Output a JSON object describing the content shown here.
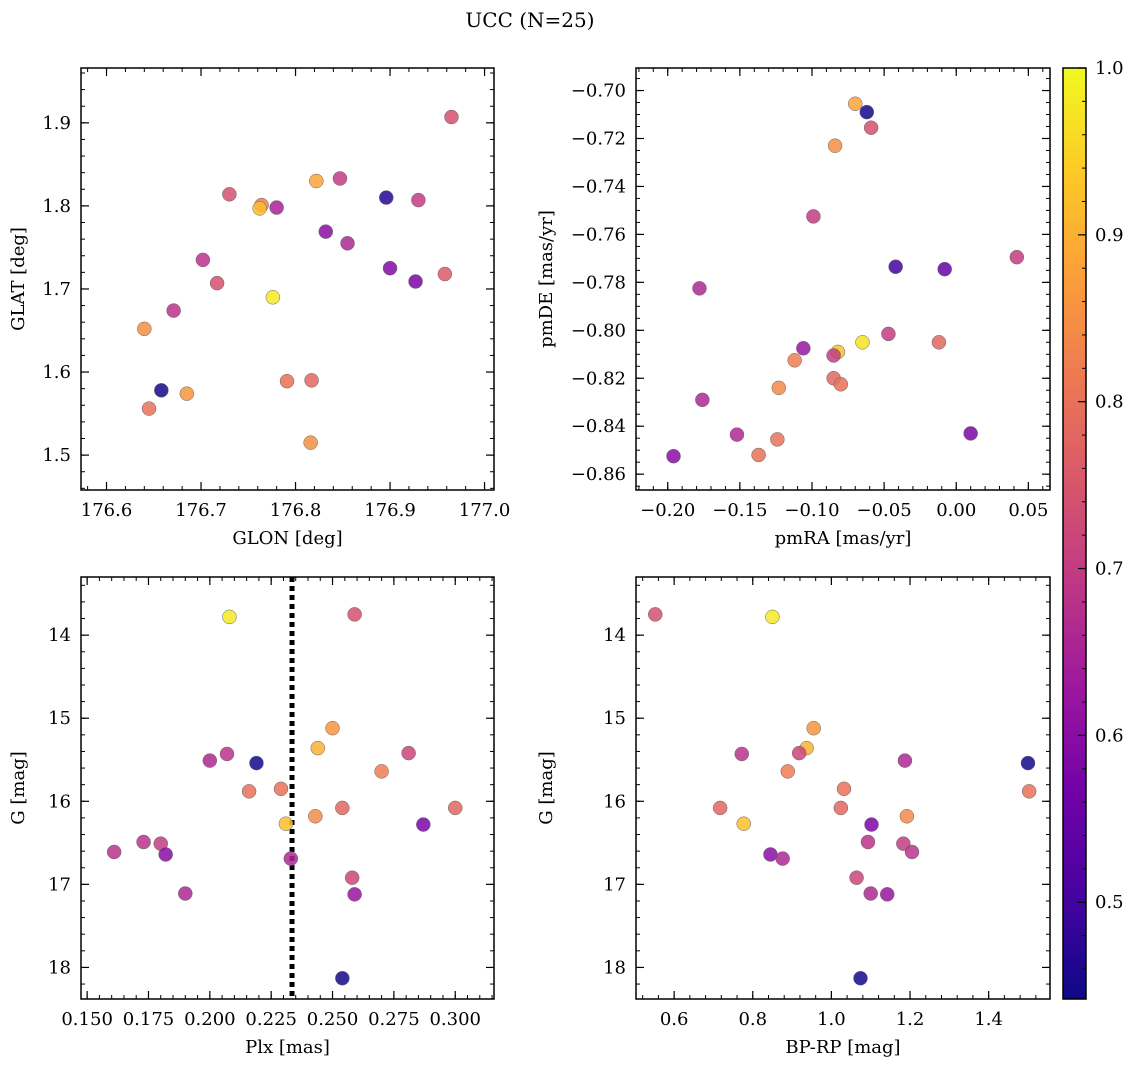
{
  "title": "UCC (N=25)",
  "colormap": {
    "name": "plasma",
    "range": [
      0.442,
      1.0
    ],
    "ticks": [
      0.5,
      0.6,
      0.7,
      0.8,
      0.9,
      1.0
    ],
    "tick_labels": [
      "0.5",
      "0.6",
      "0.7",
      "0.8",
      "0.9",
      "1.0"
    ],
    "stops": [
      "#0d0887",
      "#46039f",
      "#7201a8",
      "#9c179e",
      "#bd3786",
      "#d8576b",
      "#ed7953",
      "#fb9f3a",
      "#fdca26",
      "#f0f921"
    ]
  },
  "chart_data": [
    {
      "type": "scatter",
      "xlabel": "GLON [deg]",
      "ylabel": "GLAT [deg]",
      "xlim": [
        176.573,
        177.01
      ],
      "ylim": [
        1.458,
        1.966
      ],
      "y_inverted": false,
      "xticks": [
        176.6,
        176.7,
        176.8,
        176.9,
        177.0
      ],
      "xtick_labels": [
        "176.6",
        "176.7",
        "176.8",
        "176.9",
        "177.0"
      ],
      "yticks": [
        1.5,
        1.6,
        1.7,
        1.8,
        1.9
      ],
      "ytick_labels": [
        "1.5",
        "1.6",
        "1.7",
        "1.8",
        "1.9"
      ],
      "x_minor_step": 0.02,
      "y_minor_step": 0.02,
      "points": [
        {
          "x": 176.965,
          "y": 1.907,
          "c": 0.74
        },
        {
          "x": 176.847,
          "y": 1.833,
          "c": 0.7
        },
        {
          "x": 176.822,
          "y": 1.83,
          "c": 0.88
        },
        {
          "x": 176.73,
          "y": 1.814,
          "c": 0.74
        },
        {
          "x": 176.896,
          "y": 1.81,
          "c": 0.47
        },
        {
          "x": 176.93,
          "y": 1.807,
          "c": 0.7
        },
        {
          "x": 176.764,
          "y": 1.801,
          "c": 0.82
        },
        {
          "x": 176.78,
          "y": 1.798,
          "c": 0.65
        },
        {
          "x": 176.762,
          "y": 1.797,
          "c": 0.92
        },
        {
          "x": 176.832,
          "y": 1.769,
          "c": 0.6
        },
        {
          "x": 176.855,
          "y": 1.755,
          "c": 0.66
        },
        {
          "x": 176.702,
          "y": 1.735,
          "c": 0.68
        },
        {
          "x": 176.9,
          "y": 1.725,
          "c": 0.59
        },
        {
          "x": 176.958,
          "y": 1.718,
          "c": 0.76
        },
        {
          "x": 176.927,
          "y": 1.709,
          "c": 0.58
        },
        {
          "x": 176.717,
          "y": 1.707,
          "c": 0.74
        },
        {
          "x": 176.776,
          "y": 1.69,
          "c": 0.98
        },
        {
          "x": 176.671,
          "y": 1.674,
          "c": 0.68
        },
        {
          "x": 176.64,
          "y": 1.652,
          "c": 0.85
        },
        {
          "x": 176.791,
          "y": 1.589,
          "c": 0.8
        },
        {
          "x": 176.817,
          "y": 1.59,
          "c": 0.78
        },
        {
          "x": 176.658,
          "y": 1.578,
          "c": 0.45
        },
        {
          "x": 176.685,
          "y": 1.574,
          "c": 0.86
        },
        {
          "x": 176.645,
          "y": 1.556,
          "c": 0.8
        },
        {
          "x": 176.816,
          "y": 1.515,
          "c": 0.85
        }
      ]
    },
    {
      "type": "scatter",
      "xlabel": "pmRA [mas/yr]",
      "ylabel": "pmDE [mas/yr]",
      "xlim": [
        -0.222,
        0.065
      ],
      "ylim": [
        -0.8666,
        -0.6906
      ],
      "y_inverted": false,
      "xticks": [
        -0.2,
        -0.15,
        -0.1,
        -0.05,
        0.0,
        0.05
      ],
      "xtick_labels": [
        "−0.20",
        "−0.15",
        "−0.10",
        "−0.05",
        "0.00",
        "0.05"
      ],
      "yticks": [
        -0.86,
        -0.84,
        -0.82,
        -0.8,
        -0.78,
        -0.76,
        -0.74,
        -0.72,
        -0.7
      ],
      "ytick_labels": [
        "−0.86",
        "−0.84",
        "−0.82",
        "−0.80",
        "−0.78",
        "−0.76",
        "−0.74",
        "−0.72",
        "−0.70"
      ],
      "x_minor_step": 0.01,
      "y_minor_step": 0.005,
      "points": [
        {
          "x": -0.07,
          "y": -0.7055,
          "c": 0.88
        },
        {
          "x": -0.062,
          "y": -0.709,
          "c": 0.45
        },
        {
          "x": -0.059,
          "y": -0.7155,
          "c": 0.74
        },
        {
          "x": -0.084,
          "y": -0.723,
          "c": 0.85
        },
        {
          "x": -0.099,
          "y": -0.7525,
          "c": 0.7
        },
        {
          "x": 0.042,
          "y": -0.7695,
          "c": 0.7
        },
        {
          "x": -0.042,
          "y": -0.7735,
          "c": 0.5
        },
        {
          "x": -0.008,
          "y": -0.7745,
          "c": 0.55
        },
        {
          "x": -0.178,
          "y": -0.7825,
          "c": 0.66
        },
        {
          "x": -0.047,
          "y": -0.8015,
          "c": 0.7
        },
        {
          "x": -0.012,
          "y": -0.805,
          "c": 0.78
        },
        {
          "x": -0.065,
          "y": -0.805,
          "c": 0.97
        },
        {
          "x": -0.106,
          "y": -0.8075,
          "c": 0.62
        },
        {
          "x": -0.082,
          "y": -0.809,
          "c": 0.92
        },
        {
          "x": -0.085,
          "y": -0.8105,
          "c": 0.7
        },
        {
          "x": -0.112,
          "y": -0.8125,
          "c": 0.82
        },
        {
          "x": -0.085,
          "y": -0.82,
          "c": 0.78
        },
        {
          "x": -0.08,
          "y": -0.8225,
          "c": 0.8
        },
        {
          "x": -0.123,
          "y": -0.824,
          "c": 0.84
        },
        {
          "x": -0.176,
          "y": -0.829,
          "c": 0.66
        },
        {
          "x": -0.152,
          "y": -0.8435,
          "c": 0.66
        },
        {
          "x": 0.01,
          "y": -0.843,
          "c": 0.58
        },
        {
          "x": -0.124,
          "y": -0.8455,
          "c": 0.8
        },
        {
          "x": -0.137,
          "y": -0.852,
          "c": 0.8
        },
        {
          "x": -0.196,
          "y": -0.8525,
          "c": 0.6
        }
      ]
    },
    {
      "type": "scatter",
      "xlabel": "Plx [mas]",
      "ylabel": "G [mag]",
      "xlim": [
        0.1475,
        0.3158
      ],
      "ylim": [
        18.38,
        13.3
      ],
      "y_inverted": true,
      "xticks": [
        0.15,
        0.175,
        0.2,
        0.225,
        0.25,
        0.275,
        0.3
      ],
      "xtick_labels": [
        "0.150",
        "0.175",
        "0.200",
        "0.225",
        "0.250",
        "0.275",
        "0.300"
      ],
      "yticks": [
        14,
        15,
        16,
        17,
        18
      ],
      "ytick_labels": [
        "14",
        "15",
        "16",
        "17",
        "18"
      ],
      "x_minor_step": 0.005,
      "y_minor_step": 0.2,
      "vline": {
        "x": 0.2335,
        "style": "dotted"
      },
      "points": [
        {
          "x": 0.208,
          "y": 13.78,
          "c": 0.98
        },
        {
          "x": 0.259,
          "y": 13.75,
          "c": 0.74
        },
        {
          "x": 0.25,
          "y": 15.12,
          "c": 0.86
        },
        {
          "x": 0.244,
          "y": 15.36,
          "c": 0.9
        },
        {
          "x": 0.207,
          "y": 15.43,
          "c": 0.68
        },
        {
          "x": 0.281,
          "y": 15.42,
          "c": 0.72
        },
        {
          "x": 0.2,
          "y": 15.51,
          "c": 0.66
        },
        {
          "x": 0.219,
          "y": 15.54,
          "c": 0.45
        },
        {
          "x": 0.27,
          "y": 15.64,
          "c": 0.82
        },
        {
          "x": 0.229,
          "y": 15.85,
          "c": 0.8
        },
        {
          "x": 0.216,
          "y": 15.88,
          "c": 0.8
        },
        {
          "x": 0.254,
          "y": 16.08,
          "c": 0.78
        },
        {
          "x": 0.3,
          "y": 16.08,
          "c": 0.78
        },
        {
          "x": 0.243,
          "y": 16.18,
          "c": 0.84
        },
        {
          "x": 0.231,
          "y": 16.27,
          "c": 0.92
        },
        {
          "x": 0.287,
          "y": 16.28,
          "c": 0.58
        },
        {
          "x": 0.173,
          "y": 16.49,
          "c": 0.68
        },
        {
          "x": 0.18,
          "y": 16.51,
          "c": 0.7
        },
        {
          "x": 0.161,
          "y": 16.61,
          "c": 0.68
        },
        {
          "x": 0.182,
          "y": 16.64,
          "c": 0.6
        },
        {
          "x": 0.233,
          "y": 16.69,
          "c": 0.66
        },
        {
          "x": 0.258,
          "y": 16.92,
          "c": 0.72
        },
        {
          "x": 0.19,
          "y": 17.11,
          "c": 0.66
        },
        {
          "x": 0.259,
          "y": 17.12,
          "c": 0.62
        },
        {
          "x": 0.254,
          "y": 18.13,
          "c": 0.45
        }
      ]
    },
    {
      "type": "scatter",
      "xlabel": "BP-RP [mag]",
      "ylabel": "G [mag]",
      "xlim": [
        0.503,
        1.556
      ],
      "ylim": [
        18.38,
        13.3
      ],
      "y_inverted": true,
      "xticks": [
        0.6,
        0.8,
        1.0,
        1.2,
        1.4
      ],
      "xtick_labels": [
        "0.6",
        "0.8",
        "1.0",
        "1.2",
        "1.4"
      ],
      "yticks": [
        14,
        15,
        16,
        17,
        18
      ],
      "ytick_labels": [
        "14",
        "15",
        "16",
        "17",
        "18"
      ],
      "x_minor_step": 0.04,
      "y_minor_step": 0.2,
      "points": [
        {
          "x": 0.552,
          "y": 13.75,
          "c": 0.74
        },
        {
          "x": 0.85,
          "y": 13.78,
          "c": 0.98
        },
        {
          "x": 0.955,
          "y": 15.12,
          "c": 0.86
        },
        {
          "x": 0.937,
          "y": 15.36,
          "c": 0.9
        },
        {
          "x": 0.772,
          "y": 15.43,
          "c": 0.68
        },
        {
          "x": 0.918,
          "y": 15.42,
          "c": 0.72
        },
        {
          "x": 1.187,
          "y": 15.51,
          "c": 0.66
        },
        {
          "x": 1.5,
          "y": 15.54,
          "c": 0.45
        },
        {
          "x": 0.889,
          "y": 15.64,
          "c": 0.82
        },
        {
          "x": 1.032,
          "y": 15.85,
          "c": 0.8
        },
        {
          "x": 1.503,
          "y": 15.88,
          "c": 0.8
        },
        {
          "x": 0.717,
          "y": 16.08,
          "c": 0.78
        },
        {
          "x": 1.024,
          "y": 16.08,
          "c": 0.78
        },
        {
          "x": 1.192,
          "y": 16.18,
          "c": 0.84
        },
        {
          "x": 0.777,
          "y": 16.27,
          "c": 0.92
        },
        {
          "x": 1.102,
          "y": 16.28,
          "c": 0.58
        },
        {
          "x": 1.093,
          "y": 16.49,
          "c": 0.68
        },
        {
          "x": 1.183,
          "y": 16.51,
          "c": 0.7
        },
        {
          "x": 1.205,
          "y": 16.61,
          "c": 0.68
        },
        {
          "x": 0.845,
          "y": 16.64,
          "c": 0.6
        },
        {
          "x": 0.876,
          "y": 16.69,
          "c": 0.66
        },
        {
          "x": 1.064,
          "y": 16.92,
          "c": 0.72
        },
        {
          "x": 1.1,
          "y": 17.11,
          "c": 0.66
        },
        {
          "x": 1.142,
          "y": 17.12,
          "c": 0.62
        },
        {
          "x": 1.074,
          "y": 18.13,
          "c": 0.45
        }
      ]
    }
  ]
}
